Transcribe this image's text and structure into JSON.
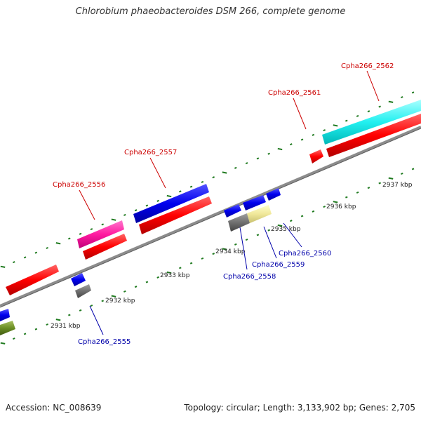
{
  "title": "Chlorobium phaeobacteroides DSM 266, complete genome",
  "footer": {
    "accession": "Accession: NC_008639",
    "topology": "Topology: circular; Length: 3,133,902 bp; Genes: 2,705"
  },
  "colors": {
    "backbone": "#8c8c8c",
    "tick": "#1f7a1f",
    "label_forward": "#cc0000",
    "label_reverse": "#0000aa"
  },
  "scale_labels": [
    {
      "name": "kbp-2931",
      "text": "2931 kbp"
    },
    {
      "name": "kbp-2932",
      "text": "2932 kbp"
    },
    {
      "name": "kbp-2933",
      "text": "2933 kbp"
    },
    {
      "name": "kbp-2934",
      "text": "2934 kbp"
    },
    {
      "name": "kbp-2935",
      "text": "2935 kbp"
    },
    {
      "name": "kbp-2936",
      "text": "2936 kbp"
    },
    {
      "name": "kbp-2937",
      "text": "2937 kbp"
    }
  ],
  "gene_labels": [
    {
      "name": "gene-label-cpha266-2555",
      "text": "Cpha266_2555",
      "strand": "reverse"
    },
    {
      "name": "gene-label-cpha266-2556",
      "text": "Cpha266_2556",
      "strand": "forward"
    },
    {
      "name": "gene-label-cpha266-2557",
      "text": "Cpha266_2557",
      "strand": "forward"
    },
    {
      "name": "gene-label-cpha266-2558",
      "text": "Cpha266_2558",
      "strand": "reverse"
    },
    {
      "name": "gene-label-cpha266-2559",
      "text": "Cpha266_2559",
      "strand": "reverse"
    },
    {
      "name": "gene-label-cpha266-2560",
      "text": "Cpha266_2560",
      "strand": "reverse"
    },
    {
      "name": "gene-label-cpha266-2561",
      "text": "Cpha266_2561",
      "strand": "forward"
    },
    {
      "name": "gene-label-cpha266-2562",
      "text": "Cpha266_2562",
      "strand": "forward"
    }
  ]
}
